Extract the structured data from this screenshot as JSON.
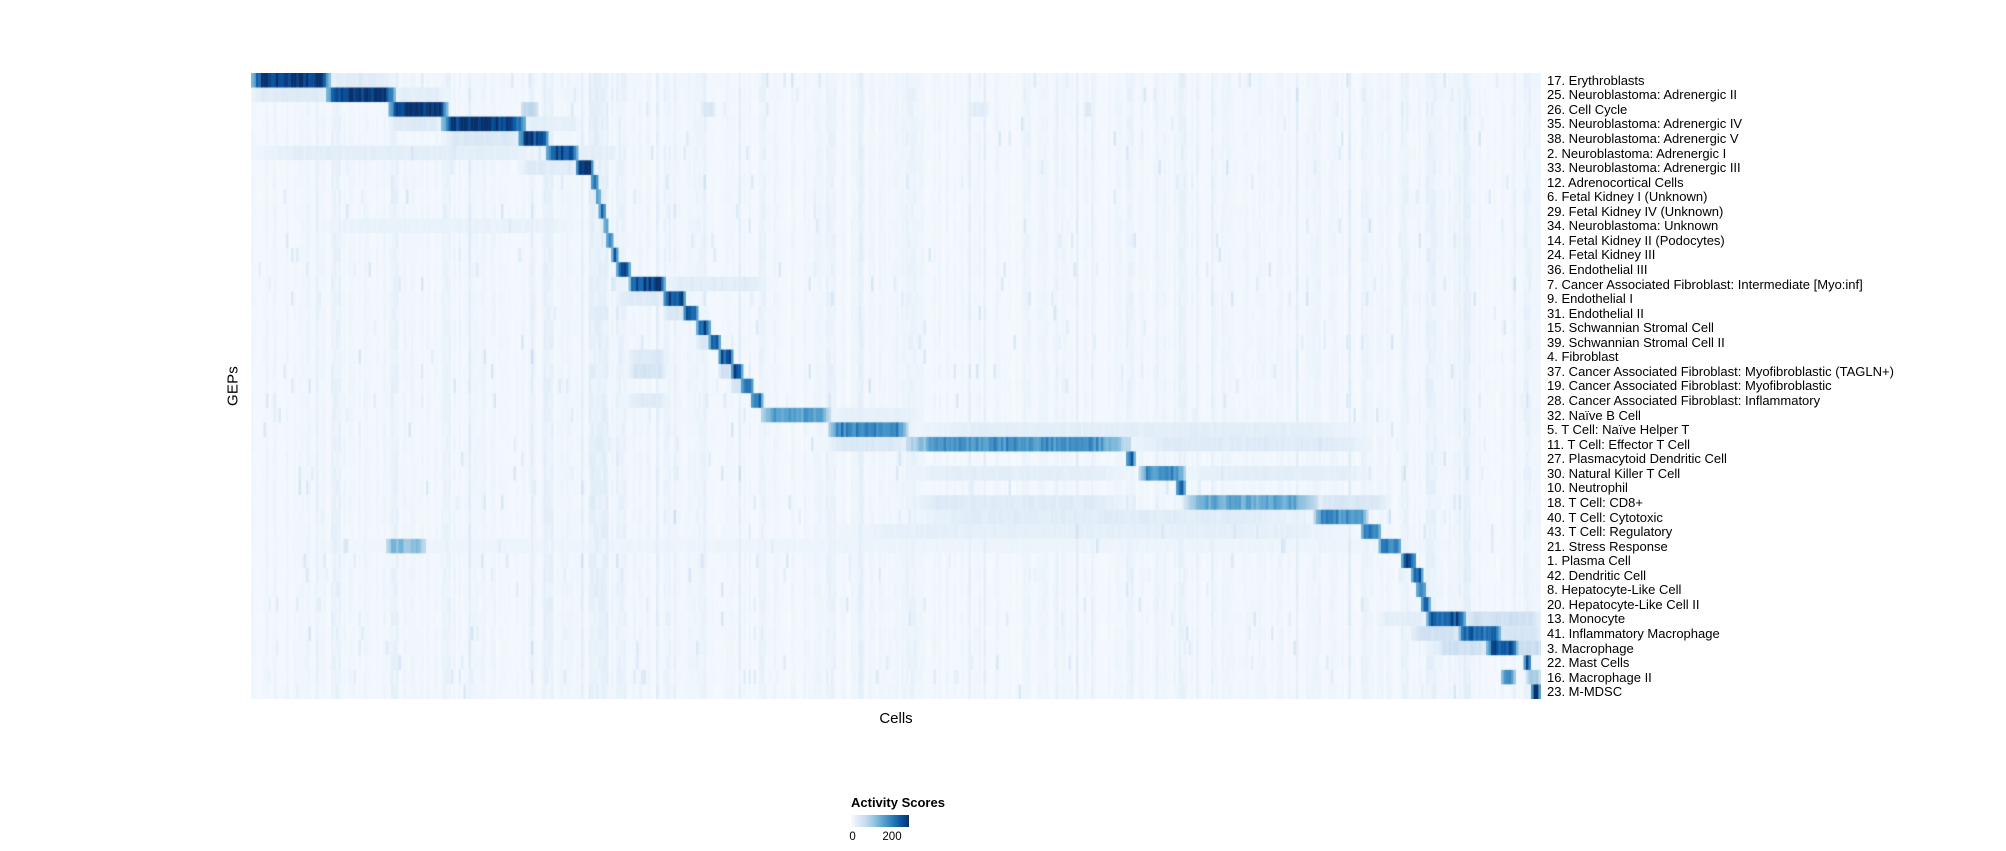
{
  "chart_data": {
    "type": "heatmap",
    "title": "",
    "xlabel": "Cells",
    "ylabel": "GEPs",
    "colorbar": {
      "title": "Activity Scores",
      "min": 0,
      "max": 200,
      "min_label": "0",
      "max_label": "200"
    },
    "colormap_stops": [
      "#f7fbff",
      "#deebf7",
      "#c6dbef",
      "#9ecae1",
      "#6baed6",
      "#4292c6",
      "#2171b5",
      "#08519c",
      "#08306b"
    ],
    "background_value": 4,
    "rows": [
      {
        "label": "17. Erythroblasts",
        "blocks": [
          [
            0.0,
            0.062,
            200
          ],
          [
            0.062,
            0.11,
            22
          ]
        ]
      },
      {
        "label": "25. Neuroblastoma: Adrenergic II",
        "blocks": [
          [
            0.06,
            0.112,
            200
          ],
          [
            0.0,
            0.06,
            25
          ],
          [
            0.112,
            0.15,
            20
          ]
        ]
      },
      {
        "label": "26. Cell Cycle",
        "blocks": [
          [
            0.108,
            0.152,
            190
          ],
          [
            0.21,
            0.222,
            55
          ],
          [
            0.35,
            0.36,
            28
          ],
          [
            0.56,
            0.57,
            22
          ]
        ]
      },
      {
        "label": "35. Neuroblastoma: Adrenergic IV",
        "blocks": [
          [
            0.148,
            0.212,
            200
          ],
          [
            0.108,
            0.148,
            25
          ],
          [
            0.212,
            0.255,
            18
          ]
        ]
      },
      {
        "label": "38. Neuroblastoma: Adrenergic V",
        "blocks": [
          [
            0.208,
            0.229,
            185
          ],
          [
            0.15,
            0.208,
            28
          ]
        ]
      },
      {
        "label": "2. Neuroblastoma: Adrenergic I",
        "blocks": [
          [
            0.229,
            0.253,
            180
          ],
          [
            0.0,
            0.229,
            20
          ],
          [
            0.253,
            0.285,
            18
          ]
        ]
      },
      {
        "label": "33. Neuroblastoma: Adrenergic III",
        "blocks": [
          [
            0.253,
            0.264,
            175
          ],
          [
            0.208,
            0.253,
            24
          ]
        ]
      },
      {
        "label": "12. Adrenocortical Cells",
        "blocks": [
          [
            0.264,
            0.268,
            160
          ]
        ]
      },
      {
        "label": "6. Fetal Kidney I (Unknown)",
        "blocks": [
          [
            0.268,
            0.271,
            150
          ]
        ]
      },
      {
        "label": "29. Fetal Kidney IV (Unknown)",
        "blocks": [
          [
            0.271,
            0.274,
            150
          ]
        ]
      },
      {
        "label": "34. Neuroblastoma: Unknown",
        "blocks": [
          [
            0.274,
            0.277,
            145
          ],
          [
            0.05,
            0.26,
            14
          ]
        ]
      },
      {
        "label": "14. Fetal Kidney II (Podocytes)",
        "blocks": [
          [
            0.277,
            0.28,
            150
          ]
        ]
      },
      {
        "label": "24. Fetal Kidney III",
        "blocks": [
          [
            0.28,
            0.284,
            160
          ]
        ]
      },
      {
        "label": "36. Endothelial III",
        "blocks": [
          [
            0.284,
            0.293,
            170
          ]
        ]
      },
      {
        "label": "7. Cancer Associated Fibroblast: Intermediate [Myo:inf]",
        "blocks": [
          [
            0.293,
            0.321,
            180
          ],
          [
            0.321,
            0.4,
            22
          ]
        ]
      },
      {
        "label": "9. Endothelial I",
        "blocks": [
          [
            0.321,
            0.336,
            175
          ],
          [
            0.284,
            0.321,
            26
          ]
        ]
      },
      {
        "label": "31. Endothelial II",
        "blocks": [
          [
            0.336,
            0.346,
            170
          ],
          [
            0.321,
            0.336,
            30
          ]
        ]
      },
      {
        "label": "15. Schwannian Stromal Cell",
        "blocks": [
          [
            0.346,
            0.356,
            170
          ]
        ]
      },
      {
        "label": "39. Schwannian Stromal Cell II",
        "blocks": [
          [
            0.356,
            0.363,
            155
          ],
          [
            0.346,
            0.356,
            30
          ]
        ]
      },
      {
        "label": "4. Fibroblast",
        "blocks": [
          [
            0.363,
            0.373,
            170
          ],
          [
            0.293,
            0.321,
            28
          ]
        ]
      },
      {
        "label": "37. Cancer Associated Fibroblast: Myofibroblastic (TAGLN+)",
        "blocks": [
          [
            0.373,
            0.381,
            170
          ],
          [
            0.293,
            0.321,
            34
          ],
          [
            0.363,
            0.373,
            40
          ]
        ]
      },
      {
        "label": "19. Cancer Associated Fibroblast: Myofibroblastic",
        "blocks": [
          [
            0.381,
            0.389,
            160
          ],
          [
            0.373,
            0.381,
            40
          ]
        ]
      },
      {
        "label": "28. Cancer Associated Fibroblast: Inflammatory",
        "blocks": [
          [
            0.389,
            0.396,
            150
          ],
          [
            0.293,
            0.321,
            24
          ]
        ]
      },
      {
        "label": "32. Naïve B Cell",
        "blocks": [
          [
            0.396,
            0.448,
            115
          ],
          [
            0.448,
            0.52,
            16
          ]
        ]
      },
      {
        "label": "5. T Cell: Naïve Helper T",
        "blocks": [
          [
            0.448,
            0.508,
            135
          ],
          [
            0.508,
            0.87,
            20
          ]
        ]
      },
      {
        "label": "11. T Cell: Effector T Cell",
        "blocks": [
          [
            0.508,
            0.682,
            125
          ],
          [
            0.448,
            0.508,
            28
          ],
          [
            0.682,
            0.87,
            24
          ]
        ]
      },
      {
        "label": "27. Plasmacytoid Dendritic Cell",
        "blocks": [
          [
            0.679,
            0.686,
            160
          ]
        ]
      },
      {
        "label": "30. Natural Killer T Cell",
        "blocks": [
          [
            0.688,
            0.723,
            125
          ],
          [
            0.508,
            0.682,
            20
          ],
          [
            0.723,
            0.87,
            20
          ]
        ]
      },
      {
        "label": "10. Neutrophil",
        "blocks": [
          [
            0.718,
            0.724,
            150
          ]
        ]
      },
      {
        "label": "18. T Cell: CD8+",
        "blocks": [
          [
            0.723,
            0.827,
            105
          ],
          [
            0.508,
            0.682,
            24
          ],
          [
            0.827,
            0.88,
            30
          ]
        ]
      },
      {
        "label": "40. T Cell: Cytotoxic",
        "blocks": [
          [
            0.825,
            0.865,
            125
          ],
          [
            0.508,
            0.825,
            22
          ]
        ]
      },
      {
        "label": "43. T Cell: Regulatory",
        "blocks": [
          [
            0.862,
            0.875,
            140
          ],
          [
            0.448,
            0.862,
            18
          ]
        ]
      },
      {
        "label": "21. Stress Response",
        "blocks": [
          [
            0.875,
            0.89,
            140
          ],
          [
            0.105,
            0.135,
            85
          ],
          [
            0.0,
            1.0,
            10
          ]
        ]
      },
      {
        "label": "1. Plasma Cell",
        "blocks": [
          [
            0.892,
            0.902,
            170
          ]
        ]
      },
      {
        "label": "42. Dendritic Cell",
        "blocks": [
          [
            0.9,
            0.907,
            160
          ]
        ]
      },
      {
        "label": "8. Hepatocyte-Like Cell",
        "blocks": [
          [
            0.904,
            0.909,
            150
          ]
        ]
      },
      {
        "label": "20. Hepatocyte-Like Cell II",
        "blocks": [
          [
            0.907,
            0.914,
            150
          ]
        ]
      },
      {
        "label": "13. Monocyte",
        "blocks": [
          [
            0.912,
            0.941,
            170
          ],
          [
            0.941,
            1.0,
            40
          ],
          [
            0.875,
            0.912,
            20
          ]
        ]
      },
      {
        "label": "41. Inflammatory Macrophage",
        "blocks": [
          [
            0.937,
            0.968,
            160
          ],
          [
            0.9,
            0.937,
            38
          ],
          [
            0.968,
            1.0,
            34
          ]
        ]
      },
      {
        "label": "3. Macrophage",
        "blocks": [
          [
            0.959,
            0.982,
            170
          ],
          [
            0.92,
            0.959,
            40
          ],
          [
            0.982,
            1.0,
            45
          ]
        ]
      },
      {
        "label": "22. Mast Cells",
        "blocks": [
          [
            0.988,
            0.992,
            180
          ]
        ]
      },
      {
        "label": "16. Macrophage II",
        "blocks": [
          [
            0.97,
            0.98,
            125
          ],
          [
            0.99,
            1.0,
            70
          ]
        ]
      },
      {
        "label": "23. M-MDSC",
        "blocks": [
          [
            0.993,
            1.0,
            185
          ]
        ]
      }
    ],
    "streaks": [
      {
        "x": 0.063,
        "w": 0.004,
        "v": 14
      },
      {
        "x": 0.11,
        "w": 0.004,
        "v": 14
      },
      {
        "x": 0.15,
        "w": 0.004,
        "v": 12
      },
      {
        "x": 0.229,
        "w": 0.004,
        "v": 15
      },
      {
        "x": 0.262,
        "w": 0.014,
        "v": 17
      },
      {
        "x": 0.284,
        "w": 0.006,
        "v": 13
      },
      {
        "x": 0.32,
        "w": 0.005,
        "v": 12
      },
      {
        "x": 0.346,
        "w": 0.004,
        "v": 10
      },
      {
        "x": 0.394,
        "w": 0.005,
        "v": 12
      },
      {
        "x": 0.447,
        "w": 0.005,
        "v": 12
      },
      {
        "x": 0.508,
        "w": 0.006,
        "v": 12
      },
      {
        "x": 0.6,
        "w": 0.004,
        "v": 10
      },
      {
        "x": 0.68,
        "w": 0.004,
        "v": 12
      },
      {
        "x": 0.72,
        "w": 0.004,
        "v": 13
      },
      {
        "x": 0.825,
        "w": 0.004,
        "v": 10
      },
      {
        "x": 0.862,
        "w": 0.004,
        "v": 11
      },
      {
        "x": 0.892,
        "w": 0.005,
        "v": 13
      },
      {
        "x": 0.912,
        "w": 0.005,
        "v": 15
      },
      {
        "x": 0.94,
        "w": 0.005,
        "v": 15
      },
      {
        "x": 0.988,
        "w": 0.004,
        "v": 13
      }
    ]
  }
}
